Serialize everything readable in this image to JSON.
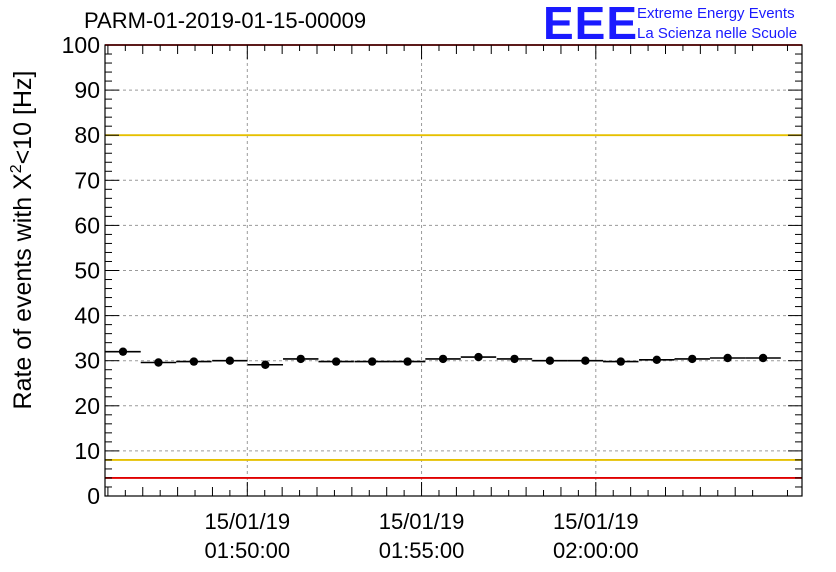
{
  "run_title": "PARM-01-2019-01-15-00009",
  "logo": {
    "mark": "EEE",
    "line1": "Extreme Energy Events",
    "line2": "La Scienza nelle Scuole",
    "color": "#1a1aff"
  },
  "chart_data": {
    "type": "scatter",
    "title": "PARM-01-2019-01-15-00009",
    "xlabel": "",
    "ylabel": "Rate of events with X²<10 [Hz]",
    "ylabel_parts": {
      "main": "Rate of events with X",
      "sup": "2",
      "rest": "<10 [Hz]"
    },
    "ylim": [
      0,
      100
    ],
    "yticks": [
      0,
      10,
      20,
      30,
      40,
      50,
      60,
      70,
      80,
      90,
      100
    ],
    "xlim": [
      "01:45:55",
      "02:05:55"
    ],
    "xticks": [
      {
        "date": "15/01/19",
        "time": "01:50:00"
      },
      {
        "date": "15/01/19",
        "time": "01:55:00"
      },
      {
        "date": "15/01/19",
        "time": "02:00:00"
      }
    ],
    "grid": true,
    "reference_lines": [
      {
        "y": 80,
        "color": "#e6c000"
      },
      {
        "y": 8,
        "color": "#e6c000"
      },
      {
        "y": 100,
        "color": "#e00000"
      },
      {
        "y": 4,
        "color": "#e00000"
      }
    ],
    "series": [
      {
        "color": "#000000",
        "x": [
          "01:46:26",
          "01:47:27",
          "01:48:28",
          "01:49:30",
          "01:50:31",
          "01:51:32",
          "01:52:33",
          "01:53:35",
          "01:54:36",
          "01:55:37",
          "01:56:38",
          "01:57:40",
          "01:58:41",
          "01:59:42",
          "02:00:43",
          "02:01:45",
          "02:02:46",
          "02:03:47",
          "02:04:48"
        ],
        "y": [
          32.0,
          29.6,
          29.8,
          30.0,
          29.1,
          30.4,
          29.8,
          29.8,
          29.8,
          30.4,
          30.8,
          30.4,
          30.0,
          30.0,
          29.8,
          30.2,
          30.4,
          30.6,
          30.6
        ]
      }
    ]
  }
}
